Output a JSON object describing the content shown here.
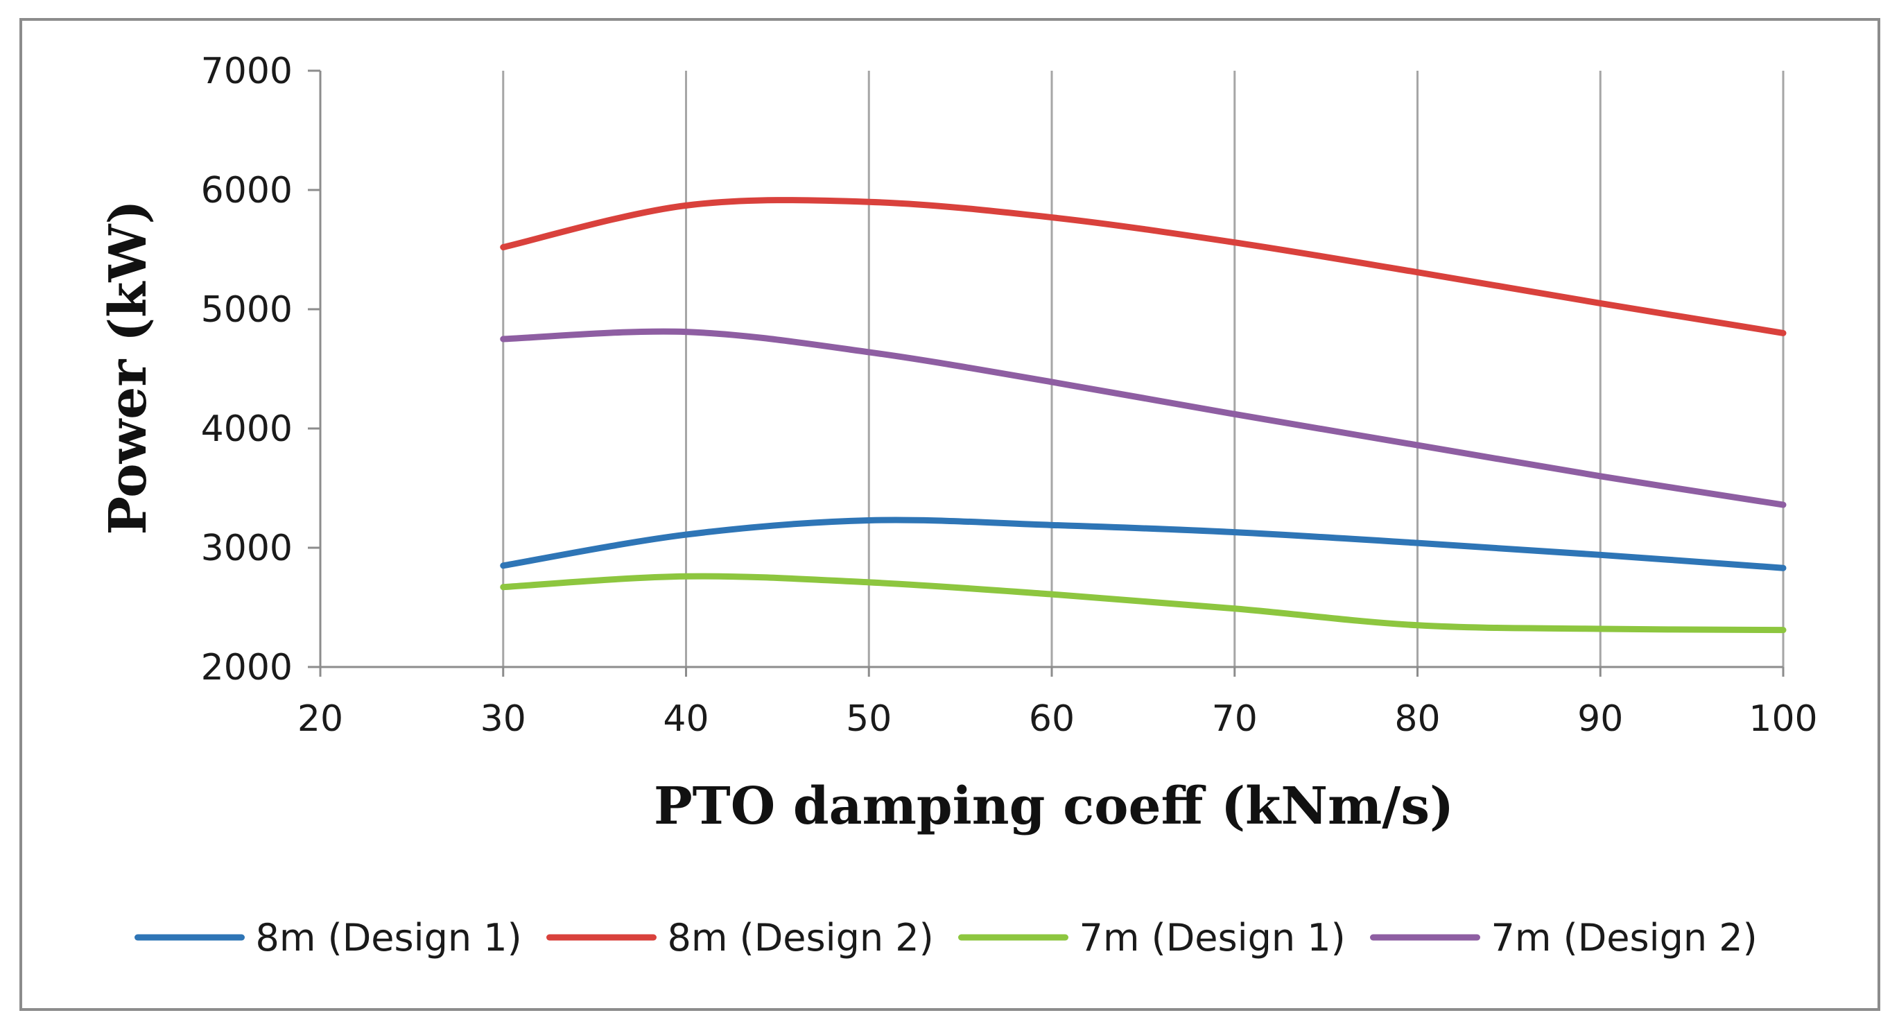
{
  "chart_data": {
    "type": "line",
    "title": "",
    "xlabel": "PTO damping coeff (kNm/s)",
    "ylabel": "Power (kW)",
    "xlim": [
      20,
      100
    ],
    "ylim": [
      2000,
      7000
    ],
    "x_ticks": [
      "20",
      "30",
      "40",
      "50",
      "60",
      "70",
      "80",
      "90",
      "100"
    ],
    "y_ticks": [
      "2000",
      "3000",
      "4000",
      "5000",
      "6000",
      "7000"
    ],
    "grid": {
      "vertical": true,
      "horizontal": false
    },
    "legend_position": "bottom",
    "x": [
      30,
      40,
      50,
      60,
      70,
      80,
      90,
      100
    ],
    "series": [
      {
        "name": "8m (Design 1)",
        "color": "#2e75b6",
        "values": [
          2850,
          3110,
          3230,
          3190,
          3130,
          3040,
          2940,
          2830
        ]
      },
      {
        "name": "8m (Design 2)",
        "color": "#d9413c",
        "values": [
          5520,
          5870,
          5900,
          5770,
          5560,
          5310,
          5050,
          4800
        ]
      },
      {
        "name": "7m (Design 1)",
        "color": "#8dc63f",
        "values": [
          2670,
          2760,
          2710,
          2610,
          2490,
          2350,
          2320,
          2310
        ]
      },
      {
        "name": "7m (Design 2)",
        "color": "#8e5ea2",
        "values": [
          4750,
          4810,
          4640,
          4390,
          4120,
          3860,
          3600,
          3360
        ]
      }
    ]
  },
  "style": {
    "frame_color": "#8c8c8c",
    "grid_color": "#a6a6a6",
    "axis_color": "#8c8c8c"
  }
}
